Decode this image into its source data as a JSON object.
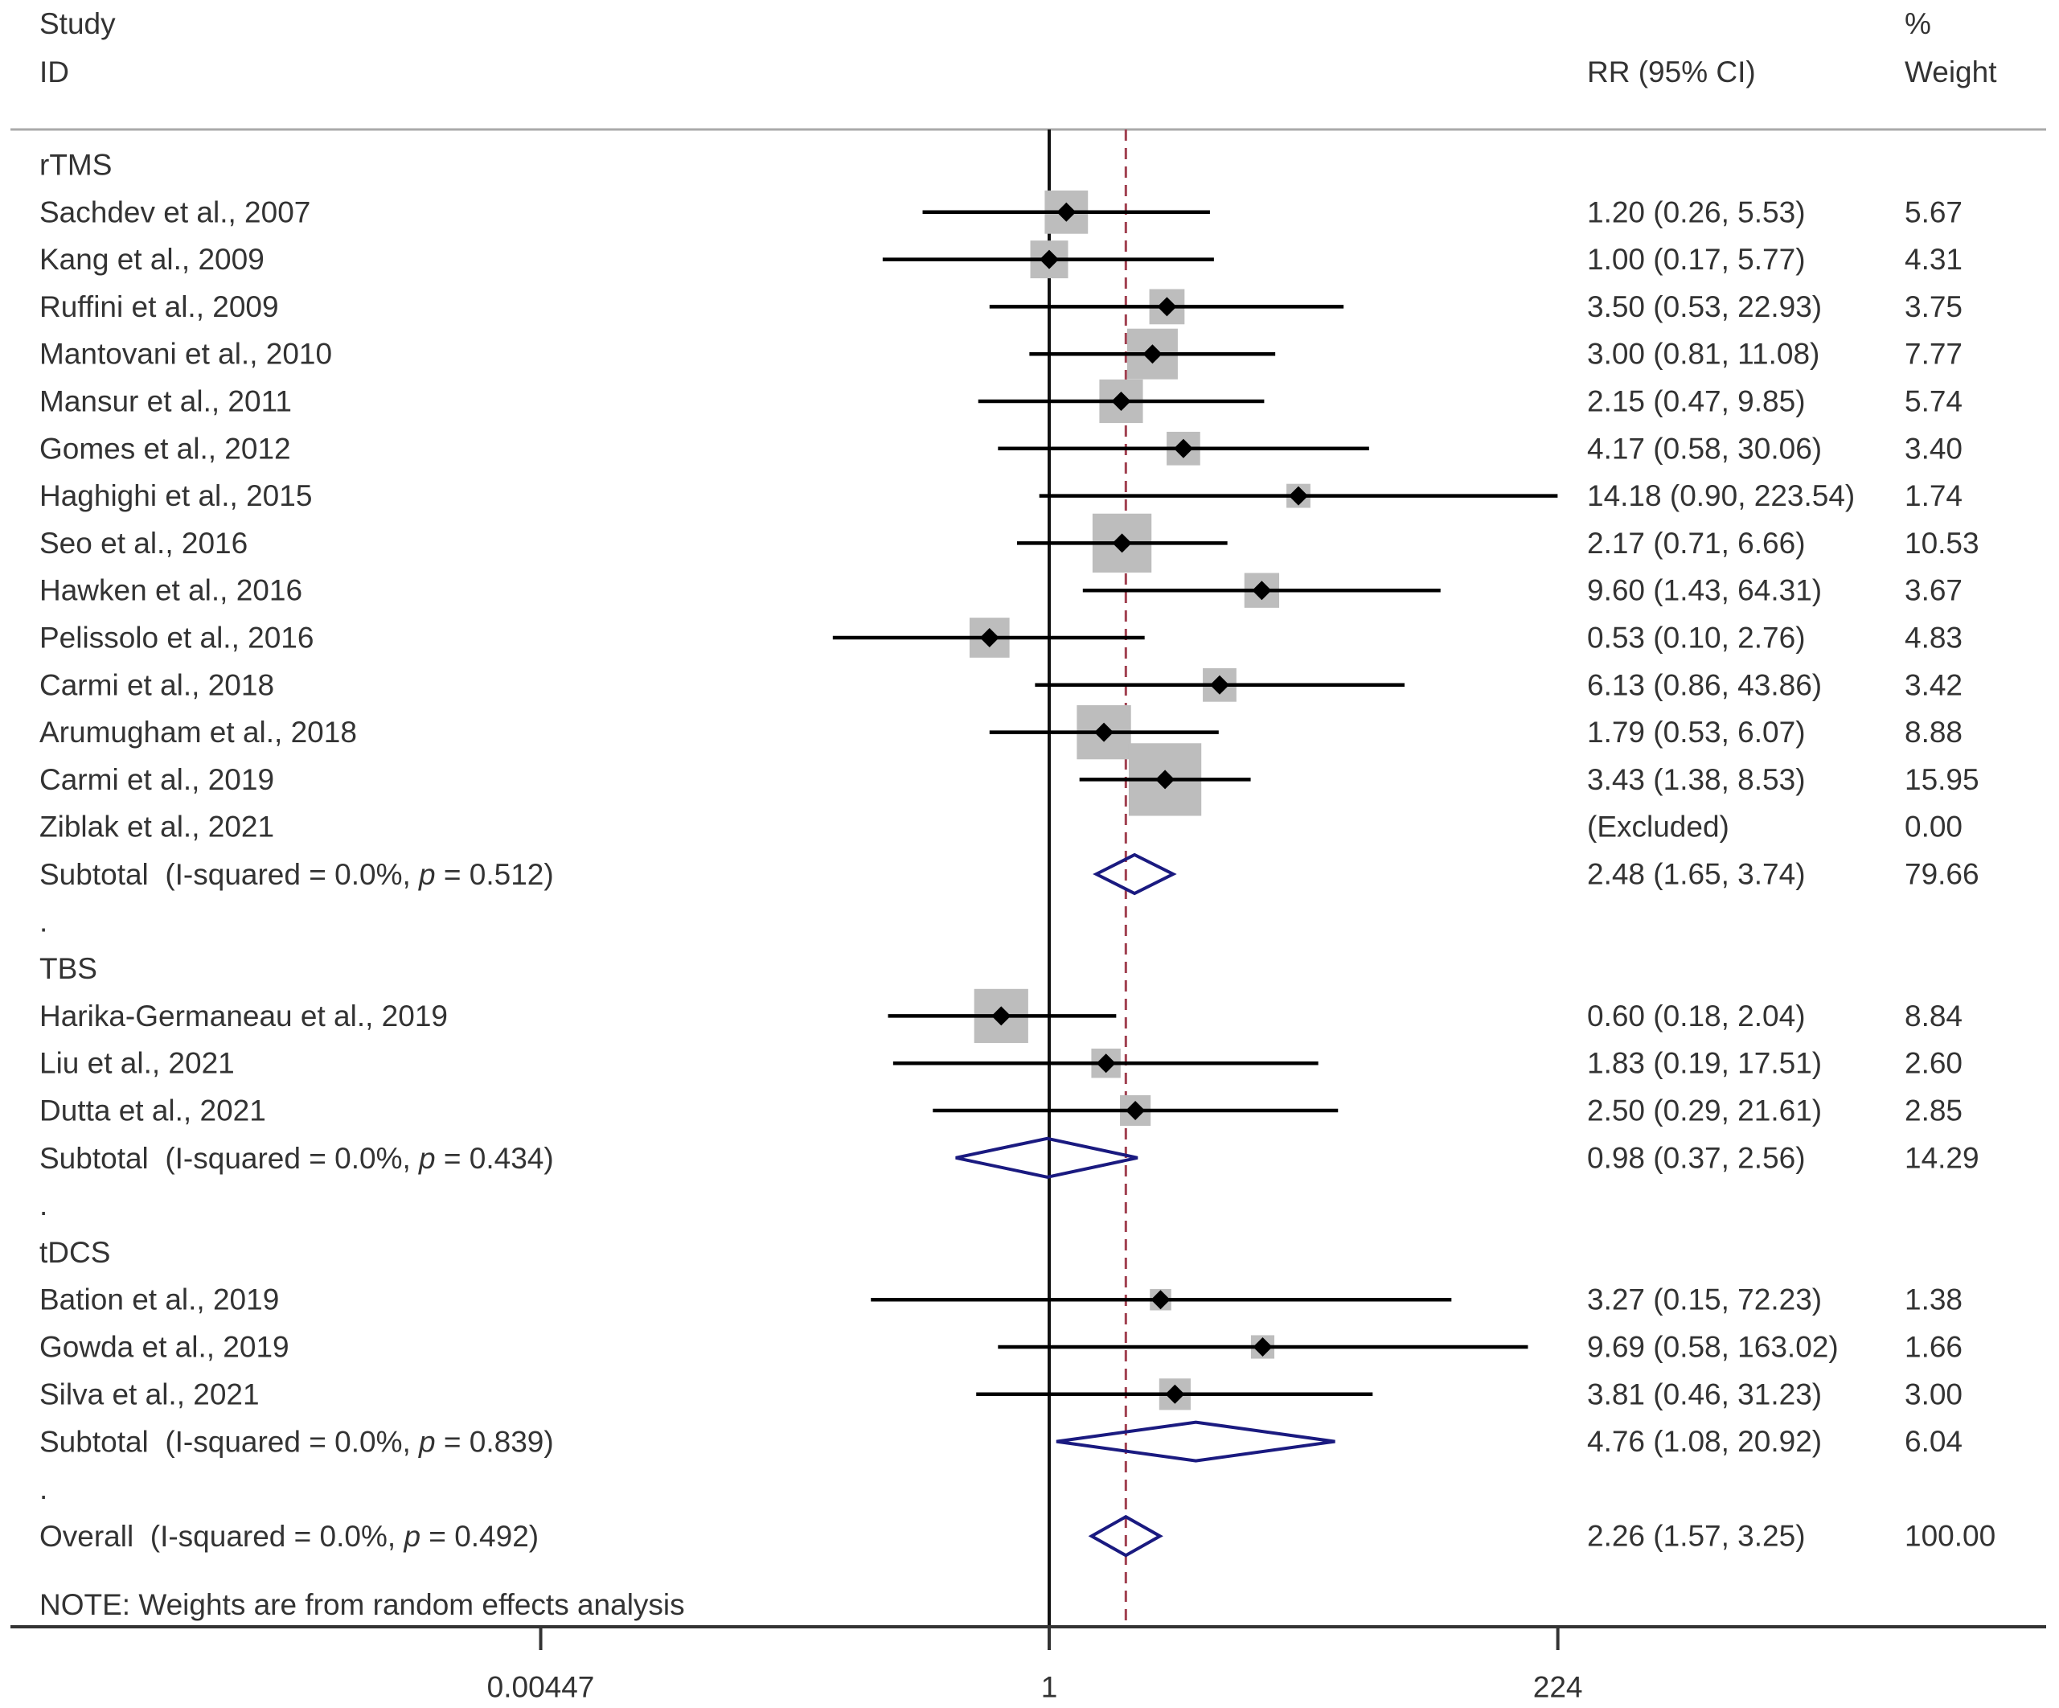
{
  "chart_data": {
    "type": "forest",
    "xscale": "log",
    "xlim": [
      0.00447,
      224
    ],
    "xticks": [
      0.00447,
      1,
      224
    ],
    "xtick_labels": [
      "0.00447",
      "1",
      "224"
    ],
    "null_line": 1,
    "overall_line": 2.26,
    "headers": {
      "study_line1": "Study",
      "study_line2": "ID",
      "effect": "RR (95% CI)",
      "weight_line1": "%",
      "weight_line2": "Weight"
    },
    "separator": ".",
    "groups": [
      {
        "name": "rTMS",
        "studies": [
          {
            "label": "Sachdev et al., 2007",
            "rr": 1.2,
            "lo": 0.26,
            "hi": 5.53,
            "ci_text": "1.20 (0.26, 5.53)",
            "weight": 5.67,
            "weight_text": "5.67"
          },
          {
            "label": "Kang et al., 2009",
            "rr": 1.0,
            "lo": 0.17,
            "hi": 5.77,
            "ci_text": "1.00 (0.17, 5.77)",
            "weight": 4.31,
            "weight_text": "4.31"
          },
          {
            "label": "Ruffini et al., 2009",
            "rr": 3.5,
            "lo": 0.53,
            "hi": 22.93,
            "ci_text": "3.50 (0.53, 22.93)",
            "weight": 3.75,
            "weight_text": "3.75"
          },
          {
            "label": "Mantovani et al., 2010",
            "rr": 3.0,
            "lo": 0.81,
            "hi": 11.08,
            "ci_text": "3.00 (0.81, 11.08)",
            "weight": 7.77,
            "weight_text": "7.77"
          },
          {
            "label": "Mansur et al., 2011",
            "rr": 2.15,
            "lo": 0.47,
            "hi": 9.85,
            "ci_text": "2.15 (0.47, 9.85)",
            "weight": 5.74,
            "weight_text": "5.74"
          },
          {
            "label": "Gomes et al., 2012",
            "rr": 4.17,
            "lo": 0.58,
            "hi": 30.06,
            "ci_text": "4.17 (0.58, 30.06)",
            "weight": 3.4,
            "weight_text": "3.40"
          },
          {
            "label": "Haghighi et al., 2015",
            "rr": 14.18,
            "lo": 0.9,
            "hi": 223.54,
            "ci_text": "14.18 (0.90, 223.54)",
            "weight": 1.74,
            "weight_text": "1.74"
          },
          {
            "label": "Seo et al., 2016",
            "rr": 2.17,
            "lo": 0.71,
            "hi": 6.66,
            "ci_text": "2.17 (0.71, 6.66)",
            "weight": 10.53,
            "weight_text": "10.53"
          },
          {
            "label": "Hawken et al., 2016",
            "rr": 9.6,
            "lo": 1.43,
            "hi": 64.31,
            "ci_text": "9.60 (1.43, 64.31)",
            "weight": 3.67,
            "weight_text": "3.67"
          },
          {
            "label": "Pelissolo et al., 2016",
            "rr": 0.53,
            "lo": 0.1,
            "hi": 2.76,
            "ci_text": "0.53 (0.10, 2.76)",
            "weight": 4.83,
            "weight_text": "4.83"
          },
          {
            "label": "Carmi et al., 2018",
            "rr": 6.13,
            "lo": 0.86,
            "hi": 43.86,
            "ci_text": "6.13 (0.86, 43.86)",
            "weight": 3.42,
            "weight_text": "3.42"
          },
          {
            "label": "Arumugham et al., 2018",
            "rr": 1.79,
            "lo": 0.53,
            "hi": 6.07,
            "ci_text": "1.79 (0.53, 6.07)",
            "weight": 8.88,
            "weight_text": "8.88"
          },
          {
            "label": "Carmi et al., 2019",
            "rr": 3.43,
            "lo": 1.38,
            "hi": 8.53,
            "ci_text": "3.43 (1.38, 8.53)",
            "weight": 15.95,
            "weight_text": "15.95"
          },
          {
            "label": "Ziblak et al., 2021",
            "rr": null,
            "lo": null,
            "hi": null,
            "ci_text": "(Excluded)",
            "weight": 0.0,
            "weight_text": "0.00"
          }
        ],
        "subtotal": {
          "label": "Subtotal",
          "stats_pre": "  (I-squared = 0.0%, ",
          "p_symbol": "p",
          "stats_post": " = 0.512)",
          "rr": 2.48,
          "lo": 1.65,
          "hi": 3.74,
          "ci_text": "2.48 (1.65, 3.74)",
          "weight_text": "79.66"
        }
      },
      {
        "name": "TBS",
        "studies": [
          {
            "label": "Harika-Germaneau et al., 2019",
            "rr": 0.6,
            "lo": 0.18,
            "hi": 2.04,
            "ci_text": "0.60 (0.18, 2.04)",
            "weight": 8.84,
            "weight_text": "8.84"
          },
          {
            "label": "Liu et al., 2021",
            "rr": 1.83,
            "lo": 0.19,
            "hi": 17.51,
            "ci_text": "1.83 (0.19, 17.51)",
            "weight": 2.6,
            "weight_text": "2.60"
          },
          {
            "label": "Dutta et al., 2021",
            "rr": 2.5,
            "lo": 0.29,
            "hi": 21.61,
            "ci_text": "2.50 (0.29, 21.61)",
            "weight": 2.85,
            "weight_text": "2.85"
          }
        ],
        "subtotal": {
          "label": "Subtotal",
          "stats_pre": "  (I-squared = 0.0%, ",
          "p_symbol": "p",
          "stats_post": " = 0.434)",
          "rr": 0.98,
          "lo": 0.37,
          "hi": 2.56,
          "ci_text": "0.98 (0.37, 2.56)",
          "weight_text": "14.29"
        }
      },
      {
        "name": "tDCS",
        "studies": [
          {
            "label": "Bation et al., 2019",
            "rr": 3.27,
            "lo": 0.15,
            "hi": 72.23,
            "ci_text": "3.27 (0.15, 72.23)",
            "weight": 1.38,
            "weight_text": "1.38"
          },
          {
            "label": "Gowda et al., 2019",
            "rr": 9.69,
            "lo": 0.58,
            "hi": 163.02,
            "ci_text": "9.69 (0.58, 163.02)",
            "weight": 1.66,
            "weight_text": "1.66"
          },
          {
            "label": "Silva et al., 2021",
            "rr": 3.81,
            "lo": 0.46,
            "hi": 31.23,
            "ci_text": "3.81 (0.46, 31.23)",
            "weight": 3.0,
            "weight_text": "3.00"
          }
        ],
        "subtotal": {
          "label": "Subtotal",
          "stats_pre": "  (I-squared = 0.0%, ",
          "p_symbol": "p",
          "stats_post": " = 0.839)",
          "rr": 4.76,
          "lo": 1.08,
          "hi": 20.92,
          "ci_text": "4.76 (1.08, 20.92)",
          "weight_text": "6.04"
        }
      }
    ],
    "overall": {
      "label": "Overall",
      "stats_pre": "  (I-squared = 0.0%, ",
      "p_symbol": "p",
      "stats_post": " = 0.492)",
      "rr": 2.26,
      "lo": 1.57,
      "hi": 3.25,
      "ci_text": "2.26 (1.57, 3.25)",
      "weight_text": "100.00"
    },
    "note": "NOTE: Weights are from random effects analysis",
    "colors": {
      "box": "#bdbdbd",
      "point": "#000000",
      "ci_line": "#000000",
      "diamond": "#1a1a80",
      "overall_line": "#a04050",
      "text": "#333333"
    }
  }
}
